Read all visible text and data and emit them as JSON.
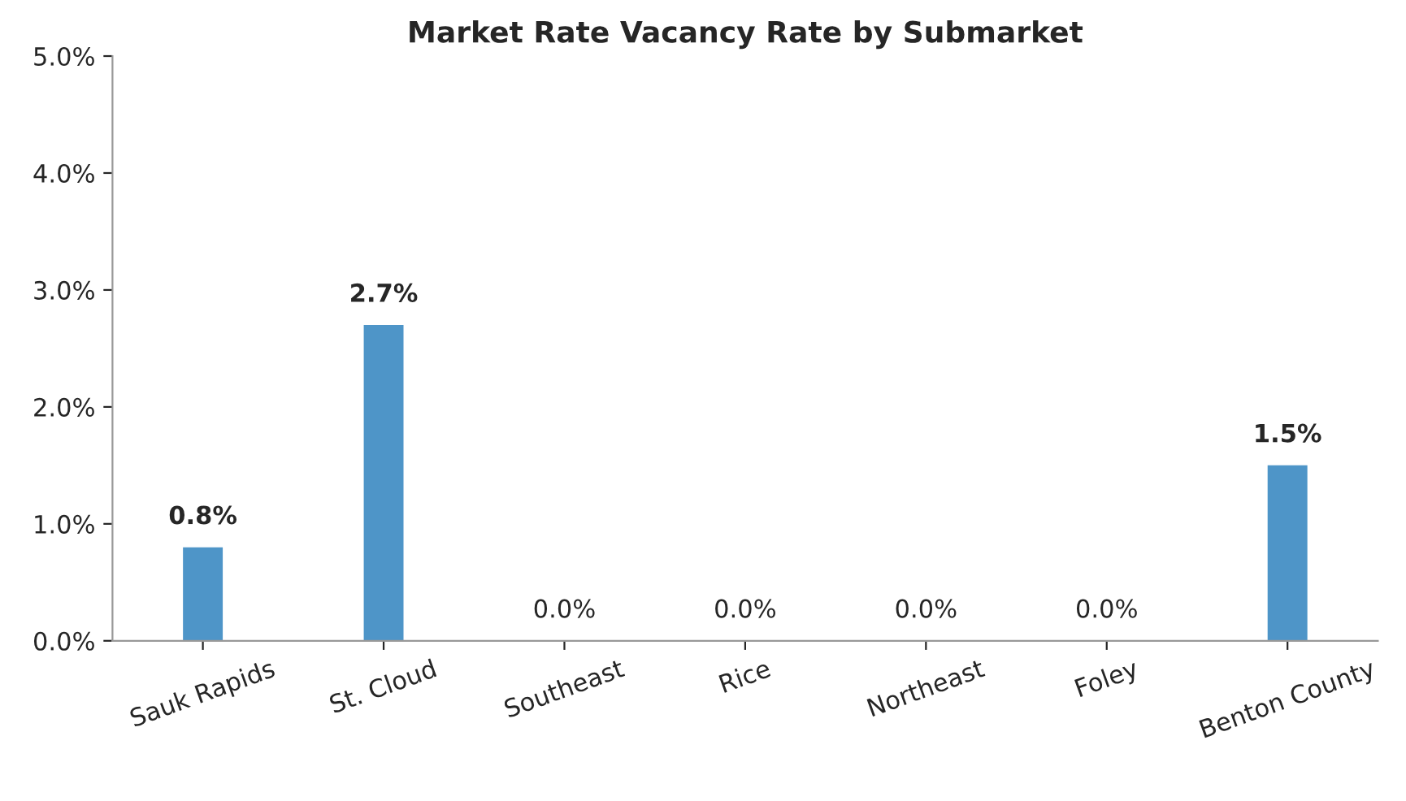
{
  "chart_data": {
    "type": "bar",
    "title": "Market Rate Vacancy Rate by Submarket",
    "categories": [
      "Sauk Rapids",
      "St. Cloud",
      "Southeast",
      "Rice",
      "Northeast",
      "Foley",
      "Benton County"
    ],
    "values": [
      0.8,
      2.7,
      0.0,
      0.0,
      0.0,
      0.0,
      1.5
    ],
    "value_labels": [
      "0.8%",
      "2.7%",
      "0.0%",
      "0.0%",
      "0.0%",
      "0.0%",
      "1.5%"
    ],
    "color": "#4e95c8",
    "ylim": [
      0,
      5
    ],
    "yticks": [
      {
        "value": 0,
        "label": "0.0%"
      },
      {
        "value": 1,
        "label": "1.0%"
      },
      {
        "value": 2,
        "label": "2.0%"
      },
      {
        "value": 3,
        "label": "3.0%"
      },
      {
        "value": 4,
        "label": "4.0%"
      },
      {
        "value": 5,
        "label": "5.0%"
      }
    ],
    "grid": false
  }
}
